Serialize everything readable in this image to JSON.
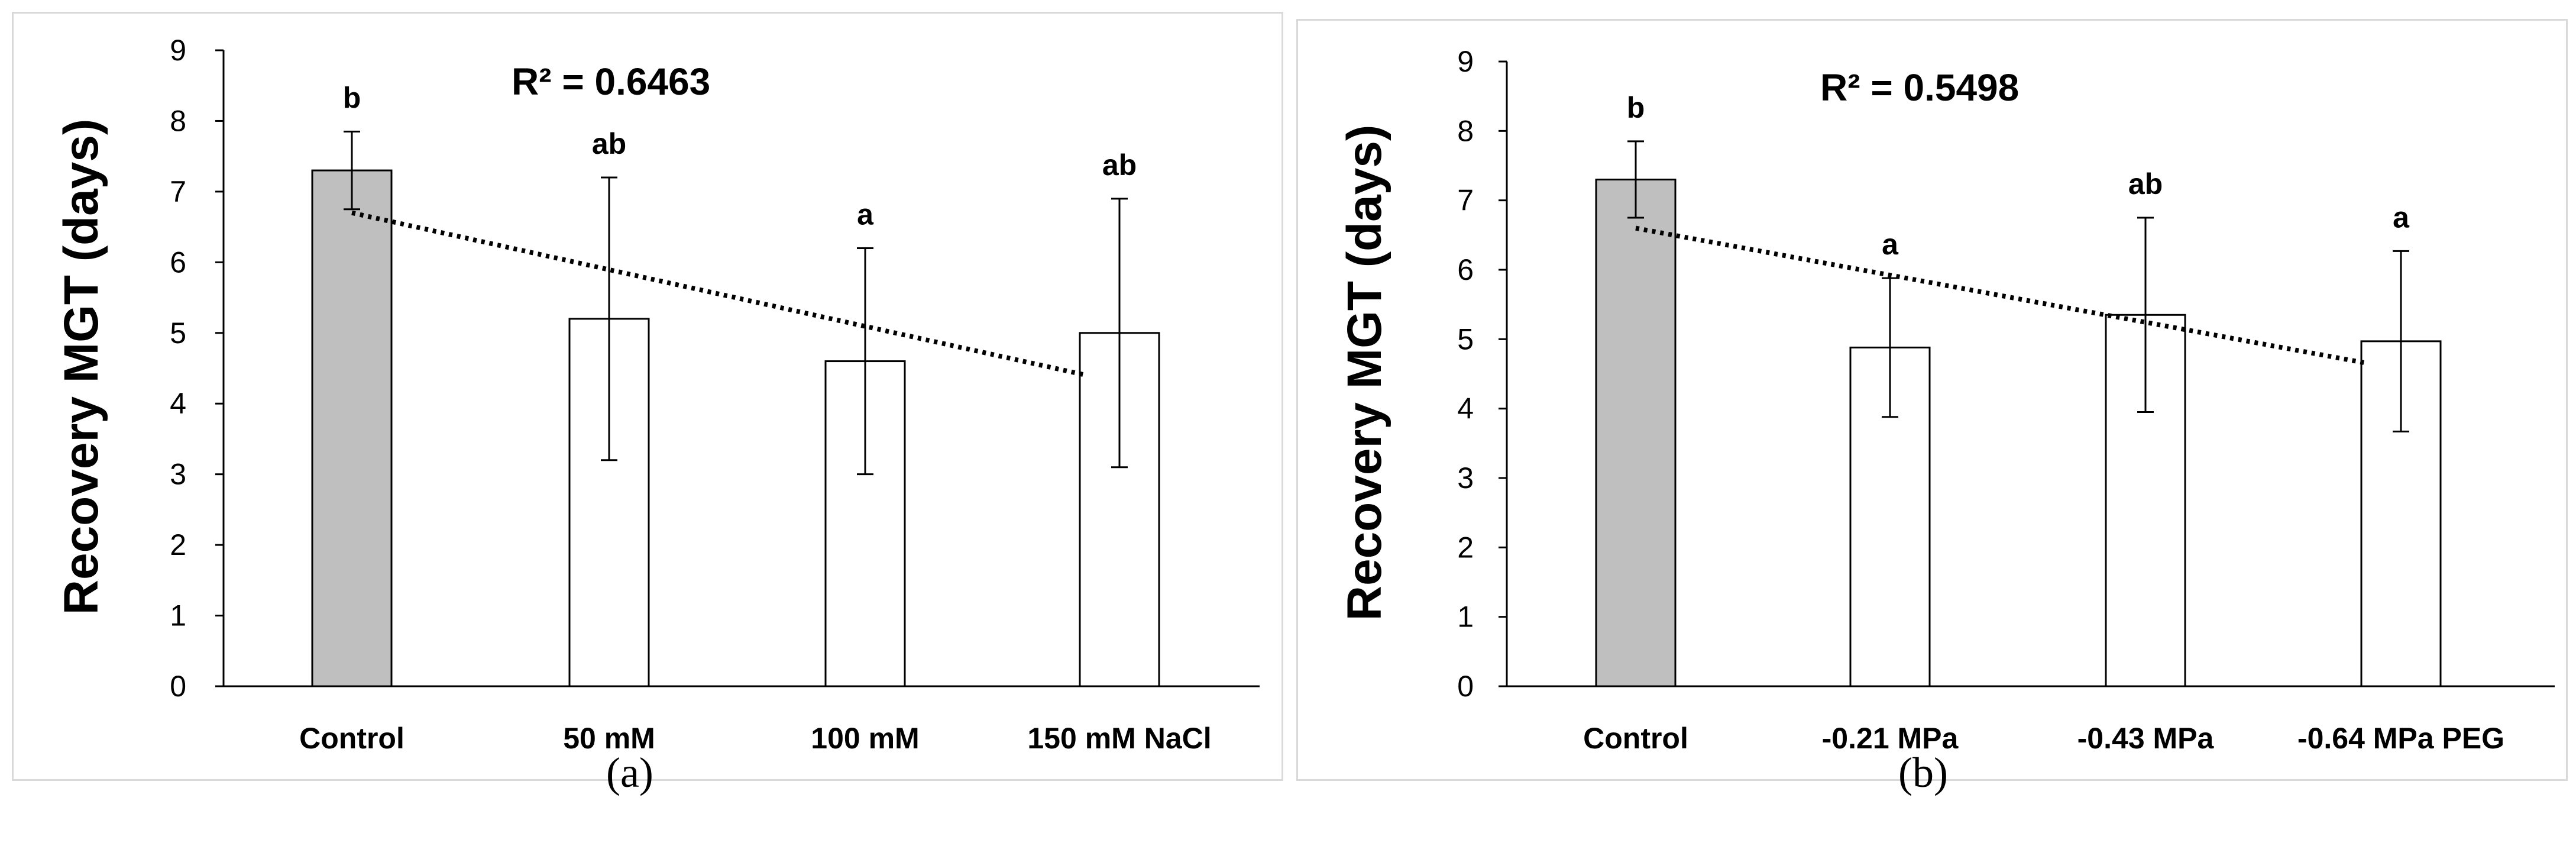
{
  "chart_data": [
    {
      "type": "bar",
      "panel_label": "(a)",
      "ylabel": "Recovery MGT (days)",
      "xlabel": "",
      "ylim": [
        0,
        9
      ],
      "yticks": [
        "0",
        "1",
        "2",
        "3",
        "4",
        "5",
        "6",
        "7",
        "8",
        "9"
      ],
      "categories": [
        "Control",
        "50 mM",
        "100 mM",
        "150 mM NaCl"
      ],
      "values": [
        7.3,
        5.2,
        4.6,
        5.0
      ],
      "errors": [
        0.55,
        2.0,
        1.6,
        1.9
      ],
      "significance": [
        "b",
        "ab",
        "a",
        "ab"
      ],
      "bar_colors": [
        "#bfbfbf",
        "#ffffff",
        "#ffffff",
        "#ffffff"
      ],
      "trendline": {
        "start": 6.7,
        "end": 4.4,
        "r2_label": "R² = 0.6463"
      }
    },
    {
      "type": "bar",
      "panel_label": "(b)",
      "ylabel": "Recovery MGT (days)",
      "xlabel": "",
      "ylim": [
        0,
        9
      ],
      "yticks": [
        "0",
        "1",
        "2",
        "3",
        "4",
        "5",
        "6",
        "7",
        "8",
        "9"
      ],
      "categories": [
        "Control",
        "-0.21 MPa",
        "-0.43 MPa",
        "-0.64 MPa PEG"
      ],
      "values": [
        7.3,
        4.88,
        5.35,
        4.97
      ],
      "errors": [
        0.55,
        1.0,
        1.4,
        1.3
      ],
      "significance": [
        "b",
        "a",
        "ab",
        "a"
      ],
      "bar_colors": [
        "#bfbfbf",
        "#ffffff",
        "#ffffff",
        "#ffffff"
      ],
      "trendline": {
        "start": 6.6,
        "end": 4.65,
        "r2_label": "R² = 0.5498"
      }
    }
  ]
}
